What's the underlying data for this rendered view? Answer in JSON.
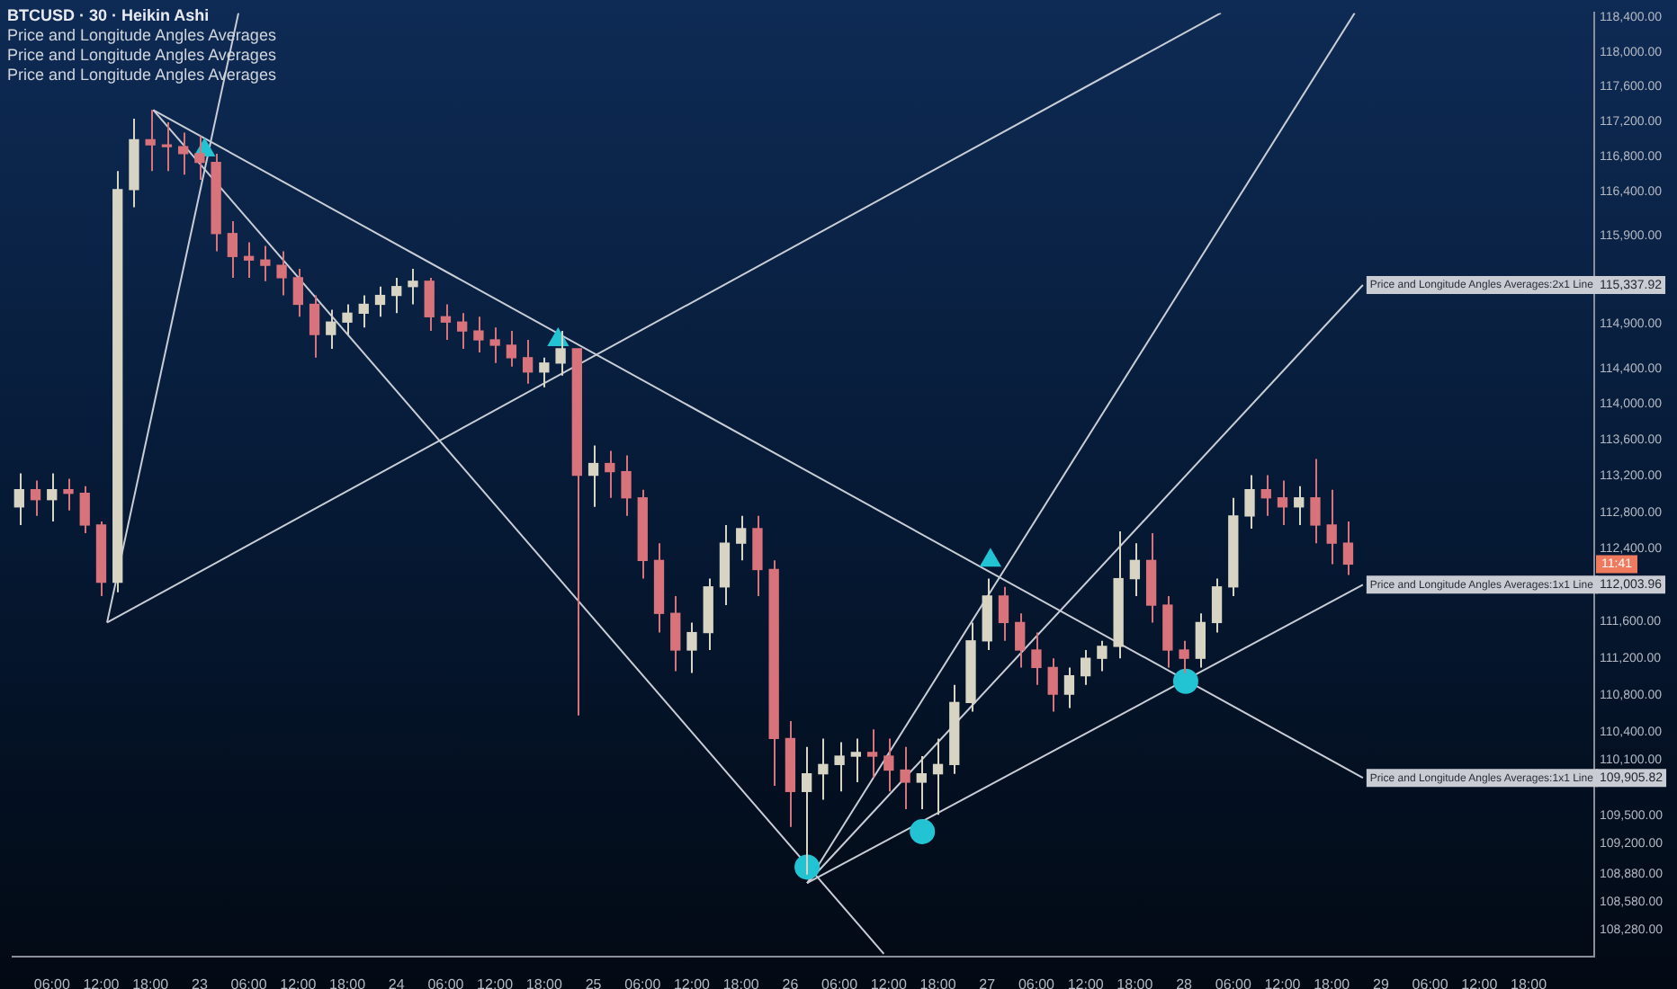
{
  "chart_data": {
    "type": "candlestick",
    "title": "BTCUSD · 30 · Heikin Ashi",
    "annotations": [
      "Price and Longitude Angles Averages",
      "Price and Longitude Angles Averages",
      "Price and Longitude Angles Averages",
      {
        "text": "Price and Longitude Angles Averages:2x1 Line",
        "x": "--08-28T21:48",
        "y": 115337.92
      },
      {
        "text": "Price and Longitude Angles Averages:1x1 Line",
        "x": "--08-28T21:48",
        "y": 112003.96
      },
      {
        "text": "Price and Longitude Angles Averages:1x1 Line",
        "x": "--08-28T21:48",
        "y": 109905.82
      },
      {
        "text": "11:41",
        "y": 112230
      }
    ],
    "log": true,
    "xlim": [
      "--08-22T01:12",
      "--08-30T02:00"
    ],
    "ylim": [
      108000,
      118450
    ],
    "xticks": [
      {
        "value": "--08-22T06:00",
        "label": "06:00"
      },
      {
        "value": "--08-22T12:00",
        "label": "12:00"
      },
      {
        "value": "--08-22T18:00",
        "label": "18:00"
      },
      {
        "value": "--08-23",
        "label": "23"
      },
      {
        "value": "--08-23T06:00",
        "label": "06:00"
      },
      {
        "value": "--08-23T12:00",
        "label": "12:00"
      },
      {
        "value": "--08-23T18:00",
        "label": "18:00"
      },
      {
        "value": "--08-24",
        "label": "24"
      },
      {
        "value": "--08-24T06:00",
        "label": "06:00"
      },
      {
        "value": "--08-24T12:00",
        "label": "12:00"
      },
      {
        "value": "--08-24T18:00",
        "label": "18:00"
      },
      {
        "value": "--08-25",
        "label": "25"
      },
      {
        "value": "--08-25T06:00",
        "label": "06:00"
      },
      {
        "value": "--08-25T12:00",
        "label": "12:00"
      },
      {
        "value": "--08-25T18:00",
        "label": "18:00"
      },
      {
        "value": "--08-26",
        "label": "26"
      },
      {
        "value": "--08-26T06:00",
        "label": "06:00"
      },
      {
        "value": "--08-26T12:00",
        "label": "12:00"
      },
      {
        "value": "--08-26T18:00",
        "label": "18:00"
      },
      {
        "value": "--08-27",
        "label": "27"
      },
      {
        "value": "--08-27T06:00",
        "label": "06:00"
      },
      {
        "value": "--08-27T12:00",
        "label": "12:00"
      },
      {
        "value": "--08-27T18:00",
        "label": "18:00"
      },
      {
        "value": "--08-28",
        "label": "28"
      },
      {
        "value": "--08-28T06:00",
        "label": "06:00"
      },
      {
        "value": "--08-28T12:00",
        "label": "12:00"
      },
      {
        "value": "--08-28T18:00",
        "label": "18:00"
      },
      {
        "value": "--08-29",
        "label": "29"
      },
      {
        "value": "--08-29T06:00",
        "label": "06:00"
      },
      {
        "value": "--08-29T12:00",
        "label": "12:00"
      },
      {
        "value": "--08-29T18:00",
        "label": "18:00"
      }
    ],
    "yticks": [
      {
        "value": 118400,
        "label": "118,400.00"
      },
      {
        "value": 118000,
        "label": "118,000.00"
      },
      {
        "value": 117600,
        "label": "117,600.00"
      },
      {
        "value": 117200,
        "label": "117,200.00"
      },
      {
        "value": 116800,
        "label": "116,800.00"
      },
      {
        "value": 116400,
        "label": "116,400.00"
      },
      {
        "value": 115900,
        "label": "115,900.00"
      },
      {
        "value": 115337.92,
        "label": "115,337.92"
      },
      {
        "value": 114900,
        "label": "114,900.00"
      },
      {
        "value": 114400,
        "label": "114,400.00"
      },
      {
        "value": 114000,
        "label": "114,000.00"
      },
      {
        "value": 113600,
        "label": "113,600.00"
      },
      {
        "value": 113200,
        "label": "113,200.00"
      },
      {
        "value": 112800,
        "label": "112,800.00"
      },
      {
        "value": 112400,
        "label": "112,400.00"
      },
      {
        "value": 112003.96,
        "label": "112,003.96"
      },
      {
        "value": 111600,
        "label": "111,600.00"
      },
      {
        "value": 111200,
        "label": "111,200.00"
      },
      {
        "value": 110800,
        "label": "110,800.00"
      },
      {
        "value": 110400,
        "label": "110,400.00"
      },
      {
        "value": 110100,
        "label": "110,100.00"
      },
      {
        "value": 109905.82,
        "label": "109,905.82"
      },
      {
        "value": 109500,
        "label": "109,500.00"
      },
      {
        "value": 109200,
        "label": "109,200.00"
      },
      {
        "value": 108880,
        "label": "108,880.00"
      },
      {
        "value": 108580,
        "label": "108,580.00"
      },
      {
        "value": 108280,
        "label": "108,280.00"
      }
    ],
    "x": [
      "--08-22T02:00",
      "--08-22T04:00",
      "--08-22T06:00",
      "--08-22T08:00",
      "--08-22T10:00",
      "--08-22T12:00",
      "--08-22T14:00",
      "--08-22T16:00",
      "--08-22T18:00",
      "--08-22T20:00",
      "--08-22T22:00",
      "--08-23T00:00",
      "--08-23T02:00",
      "--08-23T04:00",
      "--08-23T06:00",
      "--08-23T08:00",
      "--08-23T10:00",
      "--08-23T12:00",
      "--08-23T14:00",
      "--08-23T16:00",
      "--08-23T18:00",
      "--08-23T20:00",
      "--08-23T22:00",
      "--08-24T00:00",
      "--08-24T02:00",
      "--08-24T04:00",
      "--08-24T06:00",
      "--08-24T08:00",
      "--08-24T10:00",
      "--08-24T12:00",
      "--08-24T14:00",
      "--08-24T16:00",
      "--08-24T18:00",
      "--08-24T20:00",
      "--08-24T22:00",
      "--08-25T00:00",
      "--08-25T02:00",
      "--08-25T04:00",
      "--08-25T06:00",
      "--08-25T08:00",
      "--08-25T10:00",
      "--08-25T12:00",
      "--08-25T14:00",
      "--08-25T16:00",
      "--08-25T18:00",
      "--08-25T20:00",
      "--08-25T22:00",
      "--08-26T00:00",
      "--08-26T02:00",
      "--08-26T04:00",
      "--08-26T06:00",
      "--08-26T08:00",
      "--08-26T10:00",
      "--08-26T12:00",
      "--08-26T14:00",
      "--08-26T16:00",
      "--08-26T18:00",
      "--08-26T20:00",
      "--08-26T22:00",
      "--08-27T00:00",
      "--08-27T02:00",
      "--08-27T04:00",
      "--08-27T06:00",
      "--08-27T08:00",
      "--08-27T10:00",
      "--08-27T12:00",
      "--08-27T14:00",
      "--08-27T16:00",
      "--08-27T18:00",
      "--08-27T20:00",
      "--08-27T22:00",
      "--08-28T00:00",
      "--08-28T02:00",
      "--08-28T04:00",
      "--08-28T06:00",
      "--08-28T08:00",
      "--08-28T10:00",
      "--08-28T12:00",
      "--08-28T14:00",
      "--08-28T16:00",
      "--08-28T18:00",
      "--08-28T20:00"
    ],
    "ohlc": [
      [
        112860,
        113230,
        112660,
        113050
      ],
      [
        113050,
        113150,
        112760,
        112940
      ],
      [
        112940,
        113230,
        112700,
        113050
      ],
      [
        113050,
        113170,
        112820,
        113010
      ],
      [
        113010,
        113090,
        112570,
        112660
      ],
      [
        112660,
        112700,
        111880,
        112030
      ],
      [
        112030,
        116630,
        111920,
        116420
      ],
      [
        116420,
        117230,
        116220,
        116990
      ],
      [
        116990,
        117330,
        116630,
        116930
      ],
      [
        116930,
        117190,
        116630,
        116910
      ],
      [
        116910,
        117070,
        116590,
        116830
      ],
      [
        116830,
        117030,
        116530,
        116730
      ],
      [
        116730,
        116830,
        115720,
        115920
      ],
      [
        115920,
        116060,
        115420,
        115660
      ],
      [
        115660,
        115820,
        115420,
        115620
      ],
      [
        115620,
        115780,
        115380,
        115560
      ],
      [
        115560,
        115720,
        115220,
        115420
      ],
      [
        115420,
        115520,
        114980,
        115120
      ],
      [
        115120,
        115220,
        114520,
        114780
      ],
      [
        114780,
        115060,
        114620,
        114920
      ],
      [
        114920,
        115120,
        114780,
        115020
      ],
      [
        115020,
        115220,
        114860,
        115120
      ],
      [
        115120,
        115320,
        114980,
        115220
      ],
      [
        115220,
        115420,
        115020,
        115320
      ],
      [
        115320,
        115520,
        115120,
        115380
      ],
      [
        115380,
        115420,
        114820,
        114980
      ],
      [
        114980,
        115120,
        114720,
        114920
      ],
      [
        114920,
        115020,
        114620,
        114820
      ],
      [
        114820,
        114980,
        114580,
        114720
      ],
      [
        114720,
        114860,
        114460,
        114660
      ],
      [
        114660,
        114820,
        114420,
        114520
      ],
      [
        114520,
        114720,
        114230,
        114360
      ],
      [
        114360,
        114520,
        114190,
        114460
      ],
      [
        114460,
        114820,
        114320,
        114620
      ],
      [
        114620,
        114620,
        110580,
        113210
      ],
      [
        113210,
        113540,
        112860,
        113340
      ],
      [
        113340,
        113480,
        112960,
        113250
      ],
      [
        113250,
        113430,
        112760,
        112960
      ],
      [
        112960,
        113050,
        112070,
        112270
      ],
      [
        112270,
        112460,
        111480,
        111690
      ],
      [
        111690,
        111880,
        111060,
        111290
      ],
      [
        111290,
        111590,
        111040,
        111480
      ],
      [
        111480,
        112070,
        111290,
        111980
      ],
      [
        111980,
        112660,
        111780,
        112460
      ],
      [
        112460,
        112760,
        112270,
        112620
      ],
      [
        112620,
        112760,
        111880,
        112170
      ],
      [
        112170,
        112270,
        109820,
        110330
      ],
      [
        110330,
        110520,
        109380,
        109760
      ],
      [
        109760,
        110240,
        108870,
        109950
      ],
      [
        109950,
        110330,
        109670,
        110050
      ],
      [
        110050,
        110290,
        109760,
        110140
      ],
      [
        110140,
        110330,
        109860,
        110180
      ],
      [
        110180,
        110430,
        109910,
        110140
      ],
      [
        110140,
        110330,
        109760,
        109990
      ],
      [
        109990,
        110240,
        109570,
        109860
      ],
      [
        109860,
        110140,
        109570,
        109950
      ],
      [
        109950,
        110330,
        109510,
        110050
      ],
      [
        110050,
        110910,
        109950,
        110720
      ],
      [
        110720,
        111590,
        110620,
        111390
      ],
      [
        111390,
        112070,
        111290,
        111880
      ],
      [
        111880,
        111980,
        111390,
        111590
      ],
      [
        111590,
        111690,
        111100,
        111290
      ],
      [
        111290,
        111480,
        110910,
        111100
      ],
      [
        111100,
        111200,
        110620,
        110810
      ],
      [
        110810,
        111100,
        110660,
        111010
      ],
      [
        111010,
        111290,
        110910,
        111200
      ],
      [
        111200,
        111390,
        111060,
        111330
      ],
      [
        111330,
        112590,
        111200,
        112070
      ],
      [
        112070,
        112460,
        111880,
        112270
      ],
      [
        112270,
        112570,
        111590,
        111780
      ],
      [
        111780,
        111880,
        111100,
        111290
      ],
      [
        111290,
        111390,
        111040,
        111200
      ],
      [
        111200,
        111690,
        111100,
        111590
      ],
      [
        111590,
        112070,
        111480,
        111980
      ],
      [
        111980,
        112960,
        111880,
        112760
      ],
      [
        112760,
        113210,
        112620,
        113050
      ],
      [
        113050,
        113210,
        112760,
        112960
      ],
      [
        112960,
        113150,
        112660,
        112860
      ],
      [
        112860,
        113090,
        112660,
        112960
      ],
      [
        112960,
        113390,
        112460,
        112660
      ],
      [
        112660,
        113050,
        112230,
        112460
      ],
      [
        112460,
        112700,
        112110,
        112230
      ]
    ],
    "series": [
      {
        "type": "line",
        "color": "#c9cdd6",
        "x": [
          "--08-22T12:43",
          "--08-23T04:44"
        ],
        "values": [
          111590,
          118450
        ]
      },
      {
        "type": "line",
        "color": "#c9cdd6",
        "x": [
          "--08-22T12:43",
          "--08-28T04:30"
        ],
        "values": [
          111590,
          118450
        ]
      },
      {
        "type": "line",
        "color": "#c9cdd6",
        "x": [
          "--08-22T18:21",
          "--08-28T21:48"
        ],
        "values": [
          117330,
          109905.82
        ]
      },
      {
        "type": "line",
        "color": "#c9cdd6",
        "x": [
          "--08-22T18:21",
          "--08-26T11:24"
        ],
        "values": [
          117330,
          108030
        ]
      },
      {
        "type": "line",
        "color": "#c9cdd6",
        "x": [
          "--08-26T02:03",
          "--08-28T20:48"
        ],
        "values": [
          108780,
          118450
        ]
      },
      {
        "type": "line",
        "color": "#c9cdd6",
        "x": [
          "--08-26T02:03",
          "--08-28T21:48"
        ],
        "values": [
          108780,
          115337.92
        ]
      },
      {
        "type": "line",
        "color": "#c9cdd6",
        "x": [
          "--08-26T02:03",
          "--08-28T21:48"
        ],
        "values": [
          108780,
          112003.96
        ]
      },
      {
        "type": "scatter",
        "color": "#22c3d3",
        "marker": "triangle",
        "x": [
          "--08-23T00:36",
          "--08-24T19:42",
          "--08-27T00:24"
        ],
        "values": [
          116870,
          114720,
          112270
        ]
      },
      {
        "type": "scatter",
        "color": "#22c3d3",
        "marker": "circle",
        "x": [
          "--08-26T02:03",
          "--08-26T16:06",
          "--08-28T00:12"
        ],
        "values": [
          108950,
          109330,
          110950
        ]
      }
    ]
  }
}
